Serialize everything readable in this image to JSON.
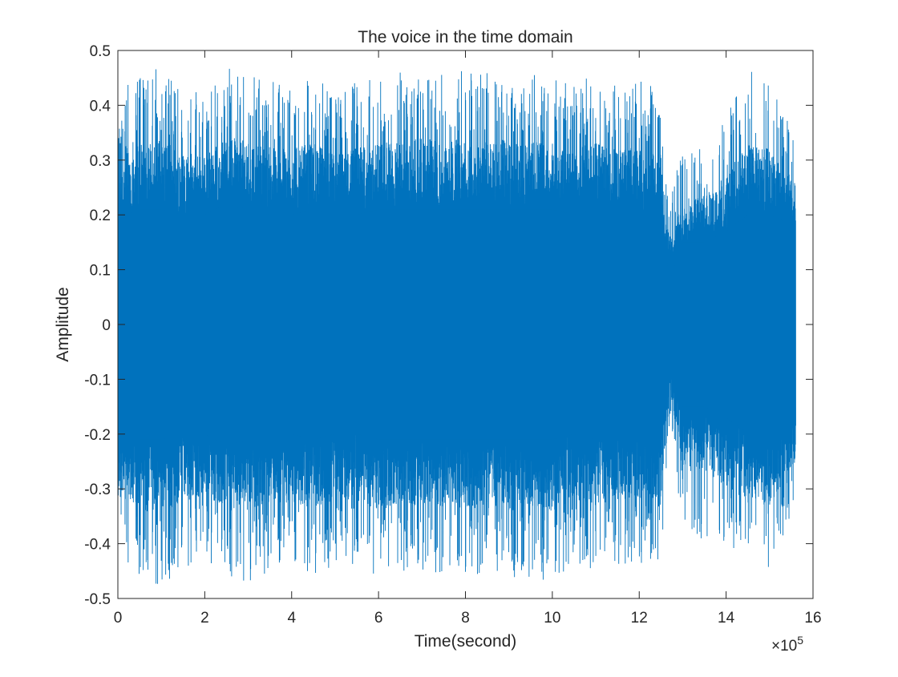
{
  "chart_data": {
    "type": "line",
    "title": "The voice in the time domain",
    "xlabel": "Time(second)",
    "ylabel": "Amplitude",
    "x_exponent_label": {
      "base": "×10",
      "power": "5"
    },
    "xlim": [
      0,
      1600000
    ],
    "ylim": [
      -0.5,
      0.5
    ],
    "x_ticks": [
      0,
      200000,
      400000,
      600000,
      800000,
      1000000,
      1200000,
      1400000,
      1600000
    ],
    "x_tick_labels": [
      "0",
      "2",
      "4",
      "6",
      "8",
      "10",
      "12",
      "14",
      "16"
    ],
    "y_ticks": [
      0.5,
      0.4,
      0.3,
      0.2,
      0.1,
      0,
      -0.1,
      -0.2,
      -0.3,
      -0.4,
      -0.5
    ],
    "y_tick_labels": [
      "0.5",
      "0.4",
      "0.3",
      "0.2",
      "0.1",
      "0",
      "-0.1",
      "-0.2",
      "-0.3",
      "-0.4",
      "-0.5"
    ],
    "grid": false,
    "line_color": "#0072BD",
    "series": [
      {
        "x_range": [
          0,
          1560000
        ],
        "envelope": {
          "x": [
            0,
            20000,
            50000,
            100000,
            150000,
            200000,
            250000,
            300000,
            350000,
            400000,
            450000,
            500000,
            550000,
            600000,
            650000,
            700000,
            750000,
            800000,
            850000,
            900000,
            950000,
            1000000,
            1050000,
            1100000,
            1150000,
            1200000,
            1250000,
            1270000,
            1300000,
            1350000,
            1400000,
            1450000,
            1500000,
            1560000
          ],
          "max": [
            0.35,
            0.46,
            0.47,
            0.47,
            0.44,
            0.42,
            0.47,
            0.46,
            0.45,
            0.44,
            0.46,
            0.42,
            0.45,
            0.46,
            0.46,
            0.47,
            0.46,
            0.47,
            0.46,
            0.47,
            0.46,
            0.46,
            0.44,
            0.46,
            0.44,
            0.45,
            0.43,
            0.22,
            0.33,
            0.32,
            0.38,
            0.47,
            0.44,
            0.34
          ],
          "min": [
            -0.33,
            -0.43,
            -0.47,
            -0.48,
            -0.45,
            -0.43,
            -0.46,
            -0.47,
            -0.46,
            -0.45,
            -0.46,
            -0.44,
            -0.44,
            -0.47,
            -0.45,
            -0.45,
            -0.46,
            -0.46,
            -0.46,
            -0.47,
            -0.46,
            -0.47,
            -0.44,
            -0.45,
            -0.44,
            -0.44,
            -0.43,
            -0.17,
            -0.38,
            -0.4,
            -0.42,
            -0.45,
            -0.46,
            -0.32
          ],
          "core": [
            0.19,
            0.2,
            0.21,
            0.21,
            0.2,
            0.2,
            0.22,
            0.21,
            0.2,
            0.2,
            0.21,
            0.2,
            0.2,
            0.21,
            0.21,
            0.21,
            0.21,
            0.21,
            0.21,
            0.21,
            0.21,
            0.21,
            0.2,
            0.21,
            0.2,
            0.2,
            0.2,
            0.08,
            0.15,
            0.15,
            0.17,
            0.2,
            0.2,
            0.18
          ]
        }
      }
    ]
  }
}
